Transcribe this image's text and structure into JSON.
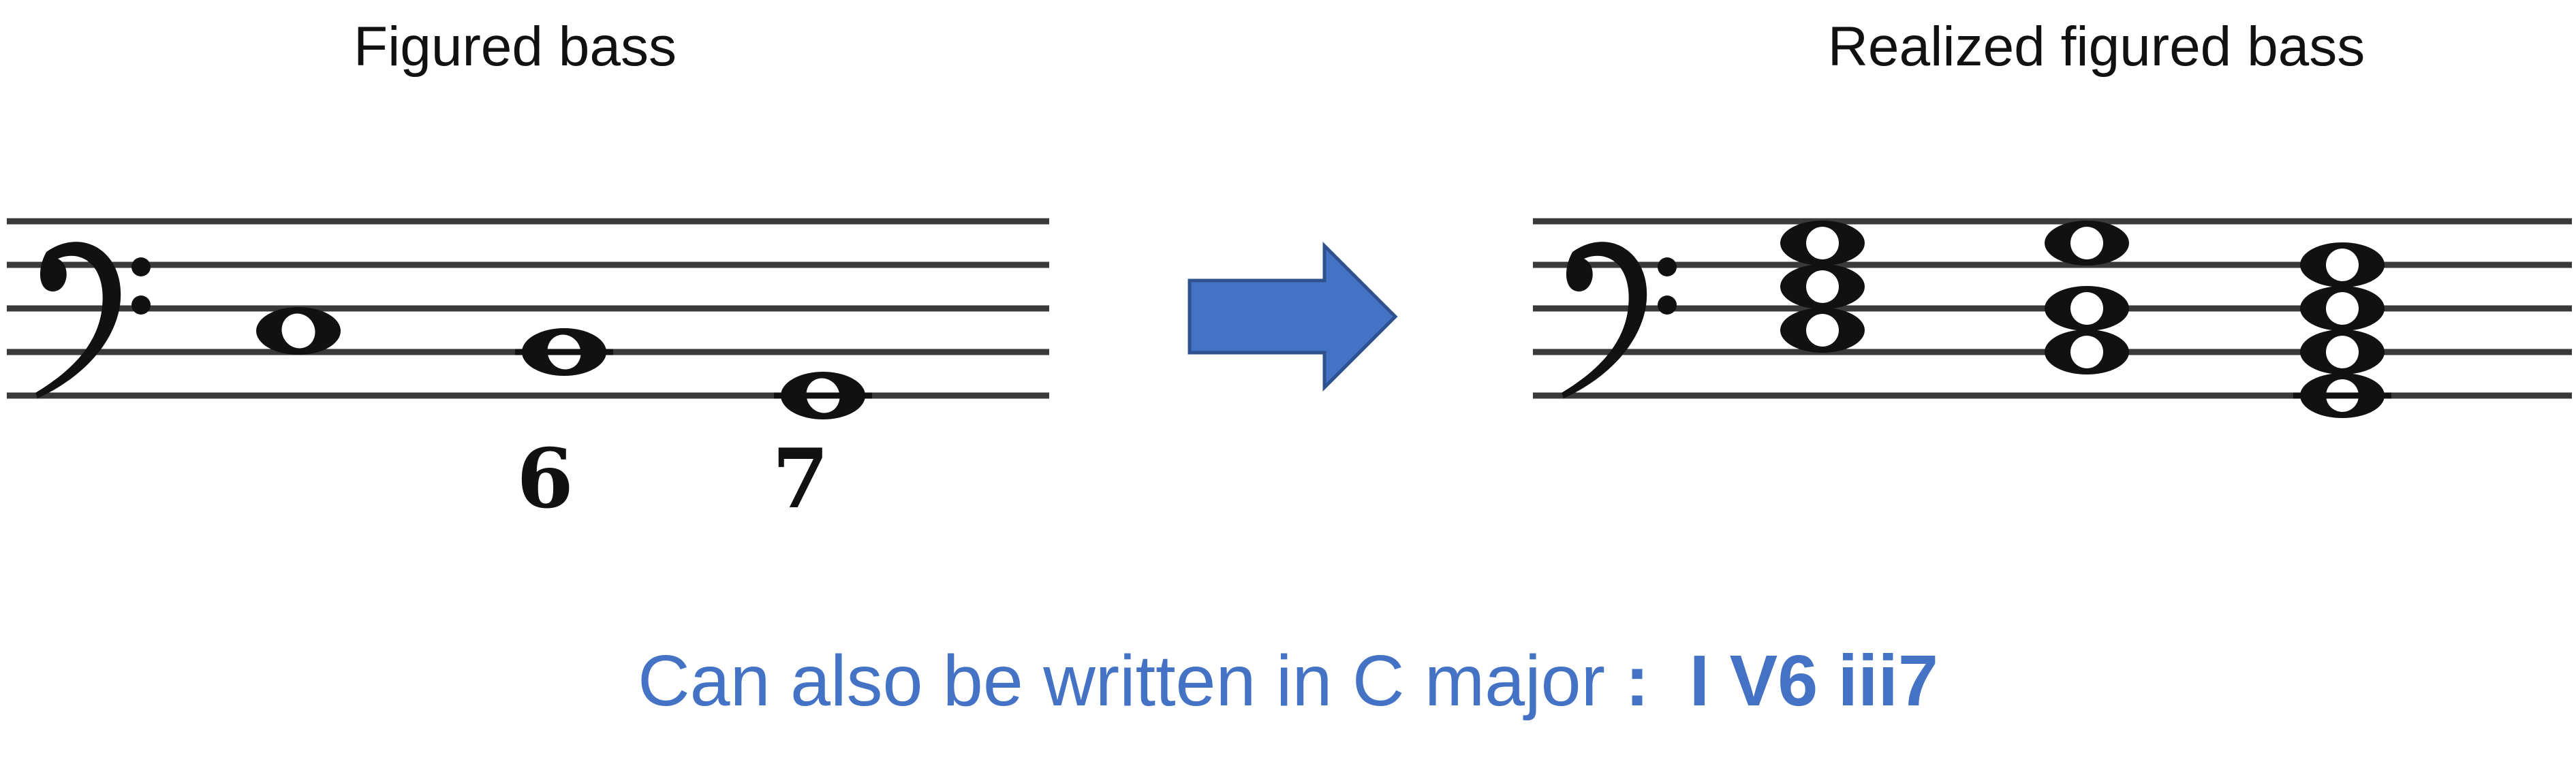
{
  "headings": {
    "left": "Figured bass",
    "right": "Realized figured bass"
  },
  "left_staff": {
    "clef": "bass",
    "figures": [
      "6",
      "7"
    ]
  },
  "right_staff": {
    "clef": "bass"
  },
  "arrow": {
    "color": "#4472c4",
    "stroke": "#2f528f"
  },
  "bottom_text": {
    "prefix": "Can also be written in C major",
    "separator": ":",
    "chords": "I V6 iii7"
  },
  "colors": {
    "accent": "#4472c4",
    "staff": "#3a3a3a",
    "text": "#111111"
  }
}
